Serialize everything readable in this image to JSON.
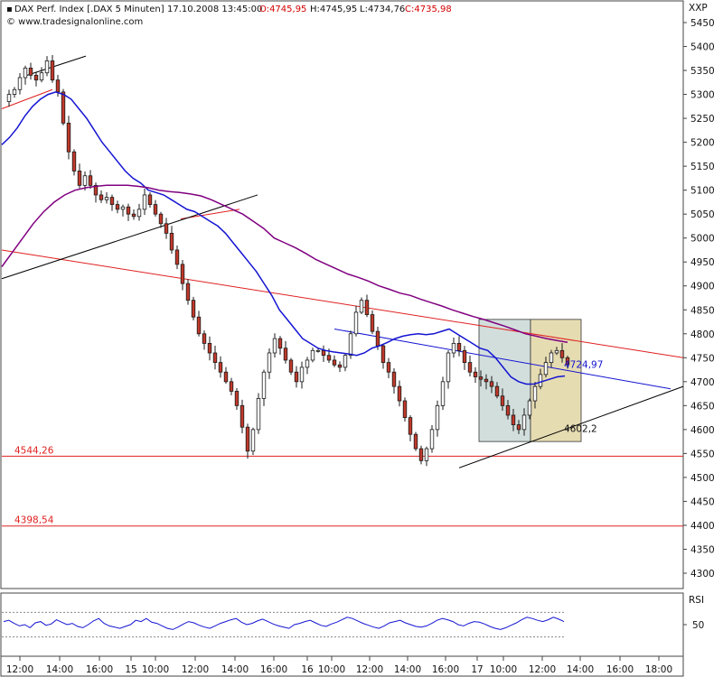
{
  "header": {
    "title": "DAX Perf. Index [.DAX  5 Minuten]",
    "datetime": "17.10.2008 13:45:00",
    "open": "O:4745,95",
    "high": "H:4745,95",
    "low": "L:4734,76",
    "close": "C:4735,98",
    "source": "© www.tradesignalonline.com",
    "currency": "XXP"
  },
  "colors": {
    "candle": "#1a1a1a",
    "candle_down": "#c0392b",
    "ma_fast": "#1414d2",
    "ma_slow": "#800080",
    "support": "#e02020",
    "trend": "#000000",
    "rsi": "#1414d2",
    "box1": "#d2dedc",
    "box2": "#e6dcb2"
  },
  "chart_data": [
    {
      "type": "candlestick",
      "ylim": [
        4260,
        5480
      ],
      "y_ticks": [
        5450,
        5400,
        5350,
        5300,
        5250,
        5200,
        5150,
        5100,
        5050,
        5000,
        4950,
        4900,
        4850,
        4800,
        4750,
        4700,
        4650,
        4600,
        4550,
        4500,
        4450,
        4400,
        4350,
        4300
      ],
      "y_tick_labels": [
        "5450",
        "5400",
        "5350",
        "5300",
        "5250",
        "5200",
        "5150",
        "5100",
        "5050",
        "5000",
        "4950",
        "4900",
        "4850",
        "4800",
        "4750",
        "4700",
        "4650",
        "4600",
        "4550",
        "4500",
        "4450",
        "4400",
        "4350",
        "4300"
      ],
      "x_labels": [
        "12:00",
        "14:00",
        "16:00",
        "15",
        "10:00",
        "12:00",
        "14:00",
        "16:00",
        "16",
        "10:00",
        "12:00",
        "14:00",
        "16:00",
        "17",
        "10:00",
        "12:00",
        "14:00",
        "16:00",
        "18:00"
      ],
      "price_series": [
        5285,
        5300,
        5310,
        5335,
        5355,
        5340,
        5330,
        5345,
        5370,
        5330,
        5305,
        5240,
        5180,
        5140,
        5110,
        5130,
        5110,
        5090,
        5080,
        5085,
        5070,
        5060,
        5065,
        5050,
        5045,
        5060,
        5090,
        5070,
        5050,
        5030,
        5010,
        4975,
        4945,
        4905,
        4870,
        4835,
        4800,
        4780,
        4760,
        4740,
        4720,
        4700,
        4680,
        4650,
        4605,
        4555,
        4600,
        4665,
        4720,
        4760,
        4790,
        4770,
        4745,
        4720,
        4700,
        4730,
        4745,
        4765,
        4765,
        4755,
        4745,
        4735,
        4730,
        4755,
        4800,
        4845,
        4870,
        4840,
        4805,
        4775,
        4740,
        4720,
        4690,
        4660,
        4625,
        4590,
        4560,
        4535,
        4560,
        4600,
        4650,
        4700,
        4760,
        4780,
        4765,
        4740,
        4720,
        4710,
        4705,
        4700,
        4690,
        4670,
        4650,
        4630,
        4610,
        4600,
        4630,
        4660,
        4690,
        4715,
        4740,
        4760,
        4765,
        4750,
        4736
      ],
      "ma_fast": [
        5195,
        5210,
        5230,
        5255,
        5275,
        5290,
        5300,
        5305,
        5300,
        5290,
        5270,
        5250,
        5225,
        5200,
        5180,
        5160,
        5140,
        5125,
        5115,
        5100,
        5095,
        5090,
        5080,
        5070,
        5060,
        5055,
        5045,
        5035,
        5025,
        5010,
        4990,
        4970,
        4950,
        4930,
        4905,
        4880,
        4850,
        4830,
        4810,
        4790,
        4780,
        4770,
        4765,
        4762,
        4760,
        4758,
        4755,
        4760,
        4770,
        4775,
        4782,
        4790,
        4795,
        4798,
        4800,
        4798,
        4800,
        4805,
        4810,
        4800,
        4790,
        4780,
        4770,
        4765,
        4750,
        4730,
        4710,
        4700,
        4695,
        4695,
        4700,
        4705,
        4710,
        4712
      ],
      "ma_slow": [
        4940,
        4970,
        5000,
        5030,
        5055,
        5075,
        5090,
        5100,
        5105,
        5108,
        5110,
        5110,
        5110,
        5108,
        5105,
        5100,
        5097,
        5095,
        5092,
        5088,
        5080,
        5070,
        5060,
        5050,
        5035,
        5020,
        5000,
        4990,
        4980,
        4968,
        4955,
        4945,
        4935,
        4925,
        4918,
        4910,
        4900,
        4893,
        4885,
        4880,
        4872,
        4865,
        4858,
        4850,
        4843,
        4836,
        4830,
        4823,
        4816,
        4808,
        4800,
        4795,
        4790,
        4786,
        4782
      ],
      "lines": {
        "support_1": "4544,26",
        "support_2": "4398,54",
        "annotation_1": "4724,97",
        "annotation_2": "4602,2"
      }
    },
    {
      "type": "line",
      "name": "RSI",
      "ylim": [
        0,
        100
      ],
      "y_tick_labels": [
        "50"
      ],
      "levels": [
        30,
        70
      ],
      "values": [
        55,
        57,
        52,
        48,
        50,
        45,
        53,
        55,
        49,
        51,
        58,
        54,
        50,
        52,
        47,
        45,
        50,
        56,
        60,
        52,
        48,
        46,
        44,
        47,
        50,
        57,
        55,
        60,
        54,
        52,
        48,
        44,
        42,
        46,
        51,
        55,
        53,
        49,
        46,
        44,
        48,
        52,
        55,
        58,
        60,
        54,
        50,
        52,
        56,
        59,
        55,
        51,
        48,
        46,
        44,
        50,
        52,
        55,
        57,
        53,
        49,
        47,
        51,
        54,
        58,
        62,
        60,
        56,
        52,
        49,
        46,
        44,
        48,
        53,
        55,
        57,
        53,
        50,
        47,
        46,
        48,
        52,
        57,
        60,
        58,
        55,
        50,
        48,
        52,
        55,
        54,
        51,
        47,
        44,
        42,
        45,
        49,
        53,
        58,
        62,
        60,
        57,
        55,
        58,
        62,
        59,
        55
      ]
    }
  ]
}
